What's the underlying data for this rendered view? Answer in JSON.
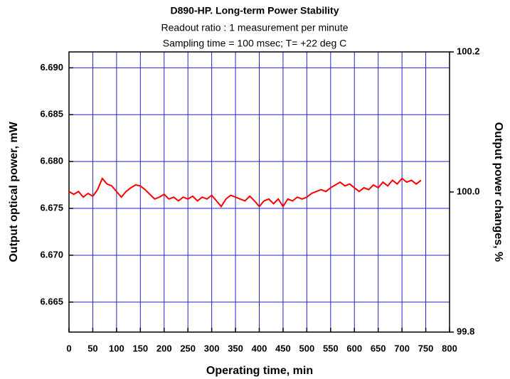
{
  "chart_data": {
    "type": "line",
    "title": "D890-HP. Long-term Power Stability",
    "subtitle": [
      "Readout ratio : 1 measurement per minute",
      "Sampling time = 100 msec; T= +22 deg C"
    ],
    "xlabel": "Operating time, min",
    "ylabel": "Output optical power, mW",
    "y2label": "Output power changes, %",
    "xlim": [
      0,
      800
    ],
    "xticks": [
      0,
      50,
      100,
      150,
      200,
      250,
      300,
      350,
      400,
      450,
      500,
      550,
      600,
      650,
      700,
      750,
      800
    ],
    "ylim": [
      6.6618,
      6.6917
    ],
    "yticks": [
      6.665,
      {
        "value": 6.67,
        "label": "6.670"
      },
      6.675,
      {
        "value": 6.68,
        "label": "6.680"
      },
      6.685,
      {
        "value": 6.69,
        "label": "6.690"
      }
    ],
    "y2lim": [
      99.8,
      100.2
    ],
    "y2ticks": [
      99.8,
      {
        "value": 100,
        "label": "100.0"
      },
      100.2
    ],
    "grid": true,
    "x": [
      0,
      10,
      20,
      30,
      40,
      50,
      60,
      70,
      80,
      90,
      100,
      110,
      120,
      130,
      140,
      150,
      160,
      170,
      180,
      190,
      200,
      210,
      220,
      230,
      240,
      250,
      260,
      270,
      280,
      290,
      300,
      310,
      320,
      330,
      340,
      350,
      360,
      370,
      380,
      390,
      400,
      410,
      420,
      430,
      440,
      450,
      460,
      470,
      480,
      490,
      500,
      510,
      520,
      530,
      540,
      550,
      560,
      570,
      580,
      590,
      600,
      610,
      620,
      630,
      640,
      650,
      660,
      670,
      680,
      690,
      700,
      710,
      720,
      730,
      740
    ],
    "series": [
      {
        "name": "Output optical power",
        "color": "#ff0000",
        "values": [
          6.6768,
          6.6765,
          6.6768,
          6.6762,
          6.6766,
          6.6763,
          6.677,
          6.6782,
          6.6776,
          6.6774,
          6.6768,
          6.6762,
          6.6768,
          6.6772,
          6.6775,
          6.6774,
          6.677,
          6.6765,
          6.676,
          6.6762,
          6.6765,
          6.676,
          6.6762,
          6.6758,
          6.6762,
          6.676,
          6.6763,
          6.6758,
          6.6762,
          6.676,
          6.6764,
          6.6758,
          6.6752,
          6.676,
          6.6764,
          6.6762,
          6.676,
          6.6758,
          6.6763,
          6.6758,
          6.6752,
          6.6758,
          6.676,
          6.6755,
          6.676,
          6.6752,
          6.676,
          6.6758,
          6.6762,
          6.676,
          6.6762,
          6.6766,
          6.6768,
          6.677,
          6.6768,
          6.6772,
          6.6775,
          6.6778,
          6.6774,
          6.6776,
          6.6772,
          6.6768,
          6.6772,
          6.677,
          6.6775,
          6.6772,
          6.6778,
          6.6774,
          6.678,
          6.6776,
          6.6782,
          6.6778,
          6.678,
          6.6776,
          6.678
        ]
      }
    ]
  }
}
